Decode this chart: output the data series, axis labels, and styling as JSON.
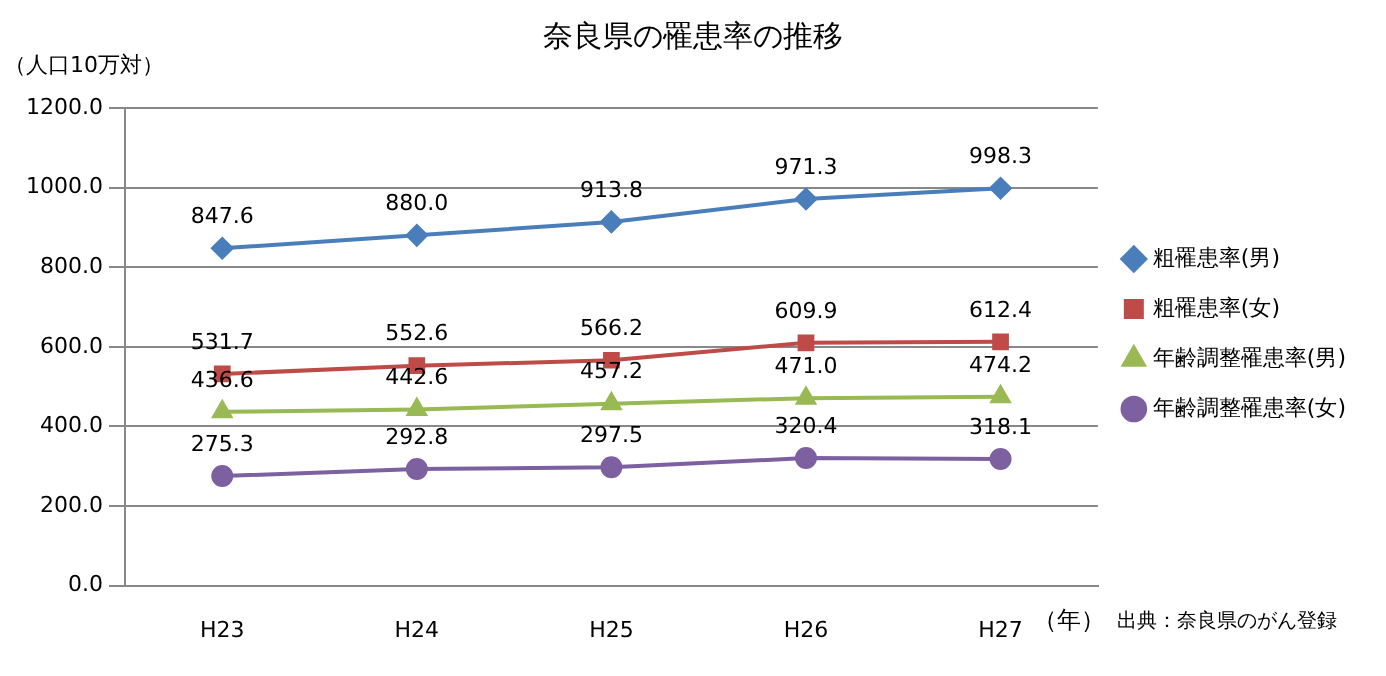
{
  "chart_data": {
    "type": "line",
    "title": "奈良県の罹患率の推移",
    "ylabel": "（人口10万対）",
    "xlabel": "（年）",
    "annotations": [
      "出典：奈良県のがん登録"
    ],
    "categories": [
      "H23",
      "H24",
      "H25",
      "H26",
      "H27"
    ],
    "series": [
      {
        "name": "粗罹患率(男)",
        "color": "#4a7ebb",
        "marker": "diamond",
        "values": [
          847.6,
          880.0,
          913.8,
          971.3,
          998.3
        ],
        "value_labels": [
          "847.6",
          "880.0",
          "913.8",
          "971.3",
          "998.3"
        ]
      },
      {
        "name": "粗罹患率(女)",
        "color": "#be4b48",
        "marker": "square",
        "values": [
          531.7,
          552.6,
          566.2,
          609.9,
          612.4
        ],
        "value_labels": [
          "531.7",
          "552.6",
          "566.2",
          "609.9",
          "612.4"
        ]
      },
      {
        "name": "年齢調整罹患率(男)",
        "color": "#98b954",
        "marker": "triangle",
        "values": [
          436.6,
          442.6,
          457.2,
          471.0,
          474.2
        ],
        "value_labels": [
          "436.6",
          "442.6",
          "457.2",
          "471.0",
          "474.2"
        ]
      },
      {
        "name": "年齢調整罹患率(女)",
        "color": "#7d60a0",
        "marker": "circle",
        "values": [
          275.3,
          292.8,
          297.5,
          320.4,
          318.1
        ],
        "value_labels": [
          "275.3",
          "292.8",
          "297.5",
          "320.4",
          "318.1"
        ]
      }
    ],
    "ylim": [
      0,
      1200
    ],
    "yticks": [
      {
        "value": 0,
        "label": "0.0"
      },
      {
        "value": 200,
        "label": "200.0"
      },
      {
        "value": 400,
        "label": "400.0"
      },
      {
        "value": 600,
        "label": "600.0"
      },
      {
        "value": 800,
        "label": "800.0"
      },
      {
        "value": 1000,
        "label": "1000.0"
      },
      {
        "value": 1200,
        "label": "1200.0"
      }
    ],
    "grid": "y",
    "legend": "right",
    "line_style": "solid"
  }
}
